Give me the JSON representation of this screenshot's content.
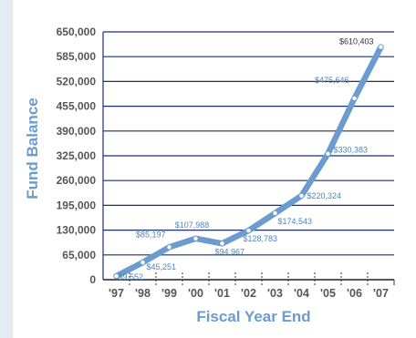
{
  "chart_data": {
    "type": "line",
    "title": "",
    "xlabel": "Fiscal Year End",
    "ylabel": "Fund Balance",
    "categories": [
      "'97",
      "'98",
      "'99",
      "'00",
      "'01",
      "'02",
      "'03",
      "'04",
      "'05",
      "'06",
      "'07"
    ],
    "y_ticks": [
      "0",
      "65,000",
      "130,000",
      "195,000",
      "260,000",
      "325,000",
      "390,000",
      "455,000",
      "520,000",
      "585,000",
      "650,000"
    ],
    "ylim": [
      0,
      650000
    ],
    "grid": true,
    "legend": "none",
    "colors": {
      "line": "#6b9bcf",
      "grid": "#1f2f6e",
      "label": "#4f86bf",
      "background": "#ffffff"
    },
    "points": [
      {
        "x": 0.5,
        "y": 9552,
        "label": "$9,552"
      },
      {
        "x": 1.5,
        "y": 45251,
        "label": "$45,251"
      },
      {
        "x": 2.5,
        "y": 85197,
        "label": "$85,197"
      },
      {
        "x": 3.5,
        "y": 107988,
        "label": "$107,988"
      },
      {
        "x": 4.5,
        "y": 94967,
        "label": "$94,967"
      },
      {
        "x": 5.5,
        "y": 128783,
        "label": "$128,783"
      },
      {
        "x": 6.5,
        "y": 174543,
        "label": "$174,543"
      },
      {
        "x": 7.5,
        "y": 220324,
        "label": "$220,324"
      },
      {
        "x": 8.5,
        "y": 330383,
        "label": "$330,383"
      },
      {
        "x": 9.5,
        "y": 475646,
        "label": "$475,646"
      },
      {
        "x": 10.5,
        "y": 610403,
        "label": "$610,403"
      }
    ]
  }
}
